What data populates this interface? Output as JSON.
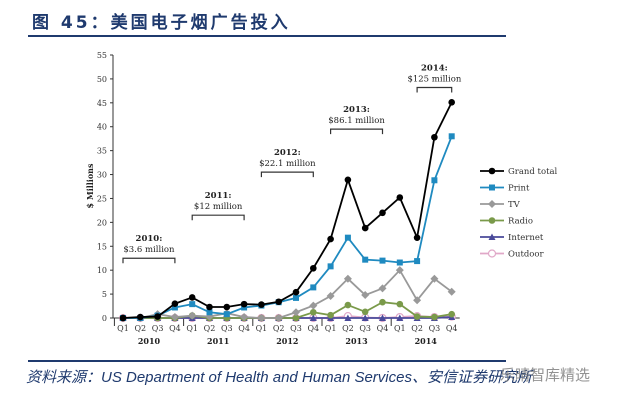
{
  "header": {
    "title": "图 45：美国电子烟广告投入"
  },
  "footer": {
    "source": "资料来源：US Department of Health and Human Services、安信证券研究所",
    "watermark": "乐晴智库精选"
  },
  "chart_data": {
    "type": "line",
    "title": "",
    "ylabel": "$ Millions",
    "xlabel": "",
    "ylim": [
      0,
      55
    ],
    "yticks": [
      0,
      5,
      10,
      15,
      20,
      25,
      30,
      35,
      40,
      45,
      50,
      55
    ],
    "categories": [
      "Q1",
      "Q2",
      "Q3",
      "Q4",
      "Q1",
      "Q2",
      "Q3",
      "Q4",
      "Q1",
      "Q2",
      "Q3",
      "Q4",
      "Q1",
      "Q2",
      "Q3",
      "Q4",
      "Q1",
      "Q2",
      "Q3",
      "Q4"
    ],
    "years": [
      "2010",
      "2011",
      "2012",
      "2013",
      "2014"
    ],
    "grid": false,
    "legend": "right",
    "series": [
      {
        "name": "Grand total",
        "color": "#000000",
        "marker": "circle",
        "values": [
          0,
          0.2,
          0.3,
          3,
          4.3,
          2.3,
          2.3,
          2.9,
          2.8,
          3.4,
          5.4,
          10.4,
          16.5,
          28.9,
          18.8,
          22,
          25.2,
          16.8,
          37.8,
          45.1
        ]
      },
      {
        "name": "Print",
        "color": "#1f8ac0",
        "marker": "square",
        "values": [
          0,
          0,
          0.5,
          2.2,
          2.9,
          1.2,
          0.8,
          2.2,
          2.6,
          3.3,
          4.2,
          6.4,
          10.8,
          16.8,
          12.2,
          12,
          11.6,
          11.9,
          28.8,
          38
        ]
      },
      {
        "name": "TV",
        "color": "#999999",
        "marker": "diamond",
        "values": [
          0,
          0,
          0.8,
          0.2,
          0.5,
          0.3,
          1,
          0.2,
          0,
          0,
          1.2,
          2.6,
          4.6,
          8.2,
          4.8,
          6.2,
          10,
          3.7,
          8.2,
          5.5
        ]
      },
      {
        "name": "Radio",
        "color": "#7a9a4a",
        "marker": "circle",
        "values": [
          0,
          0,
          0,
          0,
          0.5,
          0,
          0,
          0,
          0,
          0,
          0,
          1.2,
          0.6,
          2.7,
          1.3,
          3.3,
          2.9,
          0.3,
          0.2,
          0.8
        ]
      },
      {
        "name": "Internet",
        "color": "#4a4a9a",
        "marker": "triangle",
        "values": [
          0,
          0,
          0,
          0,
          0,
          0,
          0,
          0,
          0,
          0,
          0,
          0,
          0,
          0,
          0,
          0,
          0,
          0,
          0,
          0.2
        ]
      },
      {
        "name": "Outdoor",
        "color": "#e0a8c8",
        "marker": "open-circle",
        "values": [
          0,
          0,
          0,
          0,
          0,
          0,
          0,
          0,
          0,
          0,
          0,
          0,
          0,
          0.4,
          0.1,
          0,
          0.2,
          0.4,
          0.2,
          0.3
        ]
      }
    ],
    "annotations": [
      {
        "year": "2010:",
        "amount": "$3.6 million",
        "from": 0,
        "to": 3,
        "level": 12.5
      },
      {
        "year": "2011:",
        "amount": "$12 million",
        "from": 4,
        "to": 7,
        "level": 21.5
      },
      {
        "year": "2012:",
        "amount": "$22.1 million",
        "from": 8,
        "to": 11,
        "level": 30.5
      },
      {
        "year": "2013:",
        "amount": "$86.1 million",
        "from": 12,
        "to": 15,
        "level": 39.5
      },
      {
        "year": "2014:",
        "amount": "$125 million",
        "from": 17,
        "to": 19,
        "level": 48.2
      }
    ]
  }
}
